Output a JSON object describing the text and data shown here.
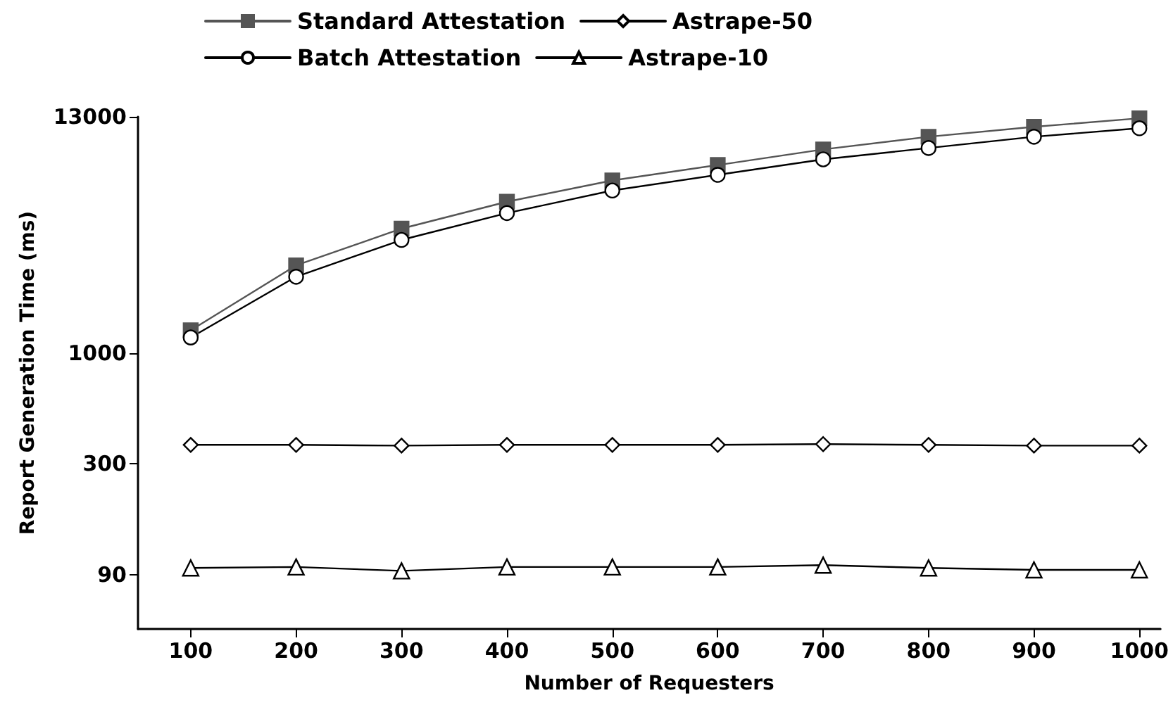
{
  "chart_data": {
    "type": "line",
    "xlabel": "Number of Requesters",
    "ylabel": "Report Generation Time (ms)",
    "x": [
      100,
      200,
      300,
      400,
      500,
      600,
      700,
      800,
      900,
      1000
    ],
    "xlim": [
      50,
      1020
    ],
    "xticks": [
      100,
      200,
      300,
      400,
      500,
      600,
      700,
      800,
      900,
      1000
    ],
    "ylim": [
      50,
      13000
    ],
    "yticks": [
      90,
      300,
      1000,
      13000
    ],
    "log": "y",
    "grid": false,
    "legend": "top",
    "series": [
      {
        "name": "Standard Attestation",
        "color": "#555555",
        "marker": "square",
        "values": [
          1280,
          2590,
          3860,
          5170,
          6510,
          7700,
          9120,
          10470,
          11660,
          12790
        ]
      },
      {
        "name": "Astrape-50",
        "color": "#000000",
        "marker": "diamond",
        "values": [
          369,
          369,
          366,
          369,
          369,
          369,
          372,
          369,
          366,
          366
        ]
      },
      {
        "name": "Batch Attestation",
        "color": "#000000",
        "marker": "circle",
        "values": [
          1184,
          2290,
          3415,
          4570,
          5840,
          6920,
          8190,
          9260,
          10470,
          11480
        ]
      },
      {
        "name": "Astrape-10",
        "color": "#000000",
        "marker": "triangle",
        "values": [
          97,
          98,
          94,
          98,
          98,
          98,
          100,
          97,
          95,
          95
        ]
      }
    ]
  }
}
